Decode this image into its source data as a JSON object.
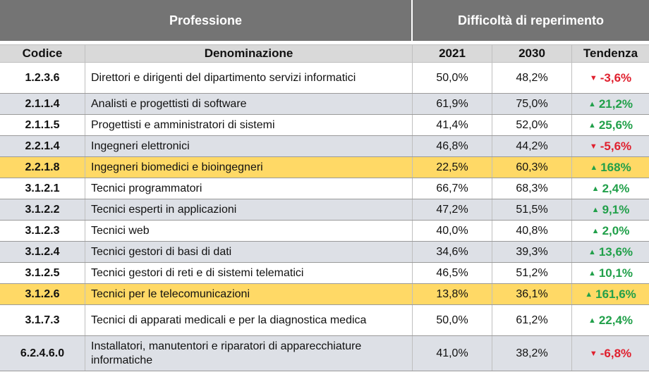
{
  "header": {
    "profession": "Professione",
    "difficulty": "Difficoltà di reperimento"
  },
  "columns": {
    "code": "Codice",
    "name": "Denominazione",
    "year1": "2021",
    "year2": "2030",
    "trend": "Tendenza"
  },
  "rows": [
    {
      "code": "1.2.3.6",
      "name": "Direttori e dirigenti del dipartimento servizi informatici",
      "v2021": "50,0%",
      "v2030": "48,2%",
      "trend": "-3,6%",
      "dir": "down",
      "arrow": "down-triangle-icon"
    },
    {
      "code": "2.1.1.4",
      "name": "Analisti e progettisti di software",
      "v2021": "61,9%",
      "v2030": "75,0%",
      "trend": "21,2%",
      "dir": "up",
      "arrow": "up-triangle-icon"
    },
    {
      "code": "2.1.1.5",
      "name": "Progettisti e amministratori di sistemi",
      "v2021": "41,4%",
      "v2030": "52,0%",
      "trend": "25,6%",
      "dir": "up",
      "arrow": "up-triangle-icon"
    },
    {
      "code": "2.2.1.4",
      "name": "Ingegneri elettronici",
      "v2021": "46,8%",
      "v2030": "44,2%",
      "trend": "-5,6%",
      "dir": "down",
      "arrow": "down-triangle-icon"
    },
    {
      "code": "2.2.1.8",
      "name": "Ingegneri biomedici e bioingegneri",
      "v2021": "22,5%",
      "v2030": "60,3%",
      "trend": "168%",
      "dir": "up",
      "arrow": "up-triangle-icon"
    },
    {
      "code": "3.1.2.1",
      "name": "Tecnici programmatori",
      "v2021": "66,7%",
      "v2030": "68,3%",
      "trend": "2,4%",
      "dir": "up",
      "arrow": "up-triangle-icon"
    },
    {
      "code": "3.1.2.2",
      "name": "Tecnici esperti in applicazioni",
      "v2021": "47,2%",
      "v2030": "51,5%",
      "trend": "9,1%",
      "dir": "up",
      "arrow": "up-triangle-icon"
    },
    {
      "code": "3.1.2.3",
      "name": "Tecnici web",
      "v2021": "40,0%",
      "v2030": "40,8%",
      "trend": "2,0%",
      "dir": "up",
      "arrow": "up-triangle-icon"
    },
    {
      "code": "3.1.2.4",
      "name": "Tecnici gestori di basi di dati",
      "v2021": "34,6%",
      "v2030": "39,3%",
      "trend": "13,6%",
      "dir": "up",
      "arrow": "up-triangle-icon"
    },
    {
      "code": "3.1.2.5",
      "name": "Tecnici gestori di reti e di sistemi telematici",
      "v2021": "46,5%",
      "v2030": "51,2%",
      "trend": "10,1%",
      "dir": "up",
      "arrow": "up-triangle-icon"
    },
    {
      "code": "3.1.2.6",
      "name": "Tecnici per le telecomunicazioni",
      "v2021": "13,8%",
      "v2030": "36,1%",
      "trend": "161,6%",
      "dir": "up",
      "arrow": "up-triangle-icon"
    },
    {
      "code": "3.1.7.3",
      "name": "Tecnici di apparati medicali e per la diagnostica medica",
      "v2021": "50,0%",
      "v2030": "61,2%",
      "trend": "22,4%",
      "dir": "up",
      "arrow": "up-triangle-icon"
    },
    {
      "code": "6.2.4.6.0",
      "name": "Installatori, manutentori e riparatori di apparecchiature informatiche",
      "v2021": "41,0%",
      "v2030": "38,2%",
      "trend": "-6,8%",
      "dir": "down",
      "arrow": "down-triangle-icon"
    }
  ],
  "colors": {
    "header_bg": "#747474",
    "subheader_bg": "#d9d9d9",
    "row_grey": "#dde0e6",
    "highlight": "#ffd966",
    "up": "#21a04a",
    "down": "#e0202e"
  }
}
